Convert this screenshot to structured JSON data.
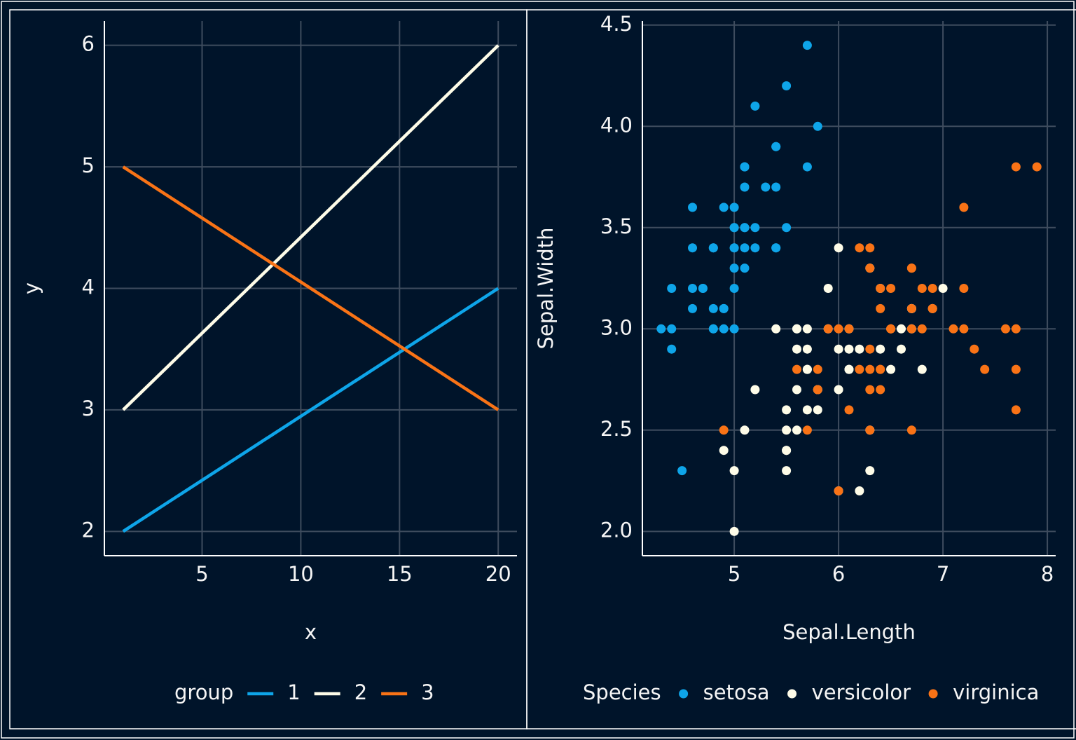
{
  "chart_data": [
    {
      "type": "line",
      "x_label": "x",
      "y_label": "y",
      "legend_title": "group",
      "x": [
        1,
        20
      ],
      "series": [
        {
          "name": "1",
          "color": "#0ea5e9",
          "values": [
            2,
            4
          ]
        },
        {
          "name": "2",
          "color": "#fefce8",
          "values": [
            3,
            6
          ]
        },
        {
          "name": "3",
          "color": "#f97316",
          "values": [
            5,
            3
          ]
        }
      ],
      "xlim": [
        0.05,
        20.95
      ],
      "ylim": [
        1.8,
        6.2
      ],
      "xticks": [
        5,
        10,
        15,
        20
      ],
      "yticks": [
        2,
        3,
        4,
        5,
        6
      ],
      "grid": true,
      "legend": "bottom"
    },
    {
      "type": "scatter",
      "x_label": "Sepal.Length",
      "y_label": "Sepal.Width",
      "legend_title": "Species",
      "series": [
        {
          "name": "setosa",
          "color": "#0ea5e9",
          "x": [
            5.1,
            4.9,
            4.7,
            4.6,
            5.0,
            5.4,
            4.6,
            5.0,
            4.4,
            4.9,
            5.4,
            4.8,
            4.8,
            4.3,
            5.8,
            5.7,
            5.4,
            5.1,
            5.7,
            5.1,
            5.4,
            5.1,
            4.6,
            5.1,
            4.8,
            5.0,
            5.0,
            5.2,
            5.2,
            4.7,
            4.8,
            5.4,
            5.2,
            5.5,
            4.9,
            5.0,
            5.5,
            4.9,
            4.4,
            5.1,
            5.0,
            4.5,
            4.4,
            5.0,
            5.1,
            4.8,
            5.1,
            4.6,
            5.3,
            5.0
          ],
          "values": [
            3.5,
            3.0,
            3.2,
            3.1,
            3.6,
            3.9,
            3.4,
            3.4,
            2.9,
            3.1,
            3.7,
            3.4,
            3.0,
            3.0,
            4.0,
            4.4,
            3.9,
            3.5,
            3.8,
            3.8,
            3.4,
            3.7,
            3.6,
            3.3,
            3.4,
            3.0,
            3.4,
            3.5,
            3.4,
            3.2,
            3.1,
            3.4,
            4.1,
            4.2,
            3.1,
            3.2,
            3.5,
            3.6,
            3.0,
            3.4,
            3.5,
            2.3,
            3.2,
            3.5,
            3.8,
            3.0,
            3.8,
            3.2,
            3.7,
            3.3
          ]
        },
        {
          "name": "versicolor",
          "color": "#fefce8",
          "x": [
            7.0,
            6.4,
            6.9,
            5.5,
            6.5,
            5.7,
            6.3,
            4.9,
            6.6,
            5.2,
            5.0,
            5.9,
            6.0,
            6.1,
            5.6,
            6.7,
            5.6,
            5.8,
            6.2,
            5.6,
            5.9,
            6.1,
            6.3,
            6.1,
            6.4,
            6.6,
            6.8,
            6.7,
            6.0,
            5.7,
            5.5,
            5.5,
            5.8,
            6.0,
            5.4,
            6.0,
            6.7,
            6.3,
            5.6,
            5.5,
            5.5,
            6.1,
            5.8,
            5.0,
            5.6,
            5.7,
            5.7,
            6.2,
            5.1,
            5.7
          ],
          "values": [
            3.2,
            3.2,
            3.1,
            2.3,
            2.8,
            2.8,
            3.3,
            2.4,
            2.9,
            2.7,
            2.0,
            3.0,
            2.2,
            2.9,
            2.9,
            3.1,
            3.0,
            2.7,
            2.2,
            2.5,
            3.2,
            2.8,
            2.5,
            2.8,
            2.9,
            3.0,
            2.8,
            3.0,
            2.9,
            2.6,
            2.4,
            2.4,
            2.7,
            2.7,
            3.0,
            3.4,
            3.1,
            2.3,
            3.0,
            2.5,
            2.6,
            3.0,
            2.6,
            2.3,
            2.7,
            3.0,
            2.9,
            2.9,
            2.5,
            2.8
          ]
        },
        {
          "name": "virginica",
          "color": "#f97316",
          "x": [
            6.3,
            5.8,
            7.1,
            6.3,
            6.5,
            7.6,
            4.9,
            7.3,
            6.7,
            7.2,
            6.5,
            6.4,
            6.8,
            5.7,
            5.8,
            6.4,
            6.5,
            7.7,
            7.7,
            6.0,
            6.9,
            5.6,
            7.7,
            6.3,
            6.7,
            7.2,
            6.2,
            6.1,
            6.4,
            7.2,
            7.4,
            7.9,
            6.4,
            6.3,
            6.1,
            7.7,
            6.3,
            6.4,
            6.0,
            6.9,
            6.7,
            6.9,
            5.8,
            6.8,
            6.7,
            6.7,
            6.3,
            6.5,
            6.2,
            5.9
          ],
          "values": [
            3.3,
            2.7,
            3.0,
            2.9,
            3.0,
            3.0,
            2.5,
            2.9,
            2.5,
            3.6,
            3.2,
            2.7,
            3.0,
            2.5,
            2.8,
            3.2,
            3.0,
            3.8,
            2.6,
            2.2,
            3.2,
            2.8,
            2.8,
            2.7,
            3.3,
            3.2,
            2.8,
            3.0,
            2.8,
            3.0,
            2.8,
            3.8,
            2.8,
            2.8,
            2.6,
            3.0,
            3.4,
            3.1,
            3.0,
            3.1,
            3.1,
            3.1,
            2.7,
            3.2,
            3.3,
            3.0,
            2.5,
            3.0,
            3.4,
            3.0
          ]
        }
      ],
      "xlim": [
        4.12,
        8.08
      ],
      "ylim": [
        1.88,
        4.52
      ],
      "xticks": [
        5,
        6,
        7,
        8
      ],
      "yticks": [
        {
          "value": 2,
          "label": "2.0"
        },
        2.5,
        {
          "value": 3,
          "label": "3.0"
        },
        3.5,
        {
          "value": 4,
          "label": "4.0"
        },
        4.5
      ],
      "grid": true,
      "legend": "bottom"
    }
  ]
}
